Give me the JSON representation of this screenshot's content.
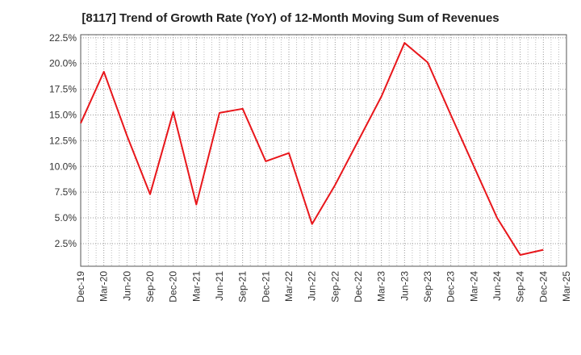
{
  "chart_data": {
    "type": "line",
    "title": "[8117]  Trend of Growth Rate (YoY) of 12-Month Moving Sum of Revenues",
    "xlabel": "",
    "ylabel": "",
    "x_ticks": [
      "Dec-19",
      "Mar-20",
      "Jun-20",
      "Sep-20",
      "Dec-20",
      "Mar-21",
      "Jun-21",
      "Sep-21",
      "Dec-21",
      "Mar-22",
      "Jun-22",
      "Sep-22",
      "Dec-22",
      "Mar-23",
      "Jun-23",
      "Sep-23",
      "Dec-23",
      "Mar-24",
      "Jun-24",
      "Sep-24",
      "Dec-24",
      "Mar-25"
    ],
    "y_ticks": [
      "2.5%",
      "5.0%",
      "7.5%",
      "10.0%",
      "12.5%",
      "15.0%",
      "17.5%",
      "20.0%",
      "22.5%"
    ],
    "ylim": [
      0.3,
      22.8
    ],
    "grid": true,
    "series": [
      {
        "color": "#e8161b",
        "x": [
          "Dec-19",
          "Mar-20",
          "Jun-20",
          "Sep-20",
          "Dec-20",
          "Mar-21",
          "Jun-21",
          "Sep-21",
          "Dec-21",
          "Mar-22",
          "Jun-22",
          "Sep-22",
          "Dec-22",
          "Mar-23",
          "Jun-23",
          "Sep-23",
          "Dec-23",
          "Mar-24",
          "Jun-24",
          "Sep-24",
          "Dec-24"
        ],
        "values": [
          14.2,
          19.2,
          13.0,
          7.3,
          15.3,
          6.3,
          15.2,
          15.6,
          10.5,
          11.3,
          4.4,
          8.2,
          12.5,
          16.8,
          22.0,
          20.1,
          15.0,
          10.0,
          5.0,
          1.4,
          1.9
        ]
      }
    ]
  }
}
